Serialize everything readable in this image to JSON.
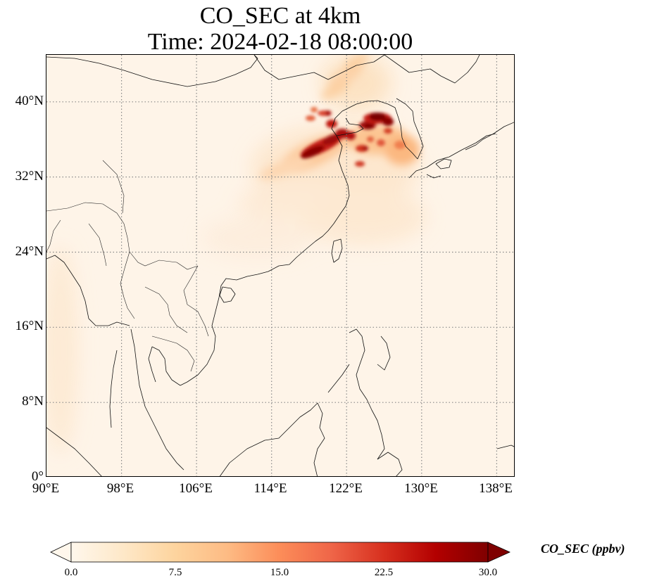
{
  "title": {
    "line1": "CO_SEC at 4km",
    "line2": "Time: 2024-02-18 08:00:00"
  },
  "map": {
    "projection": "PlateCarree",
    "lon_range": [
      90,
      140
    ],
    "lat_range": [
      0,
      45
    ],
    "gridlines": "dotted gray",
    "lat_ticks": [
      "40°N",
      "32°N",
      "24°N",
      "16°N",
      "8°N",
      "0°"
    ],
    "lon_ticks": [
      "90°E",
      "98°E",
      "106°E",
      "114°E",
      "122°E",
      "130°E",
      "138°E"
    ],
    "features": [
      "coastlines",
      "country borders"
    ]
  },
  "colorbar": {
    "label": "CO_SEC (ppbv)",
    "colormap": "OrRd",
    "range": [
      0.0,
      30.0
    ],
    "extend": "both",
    "ticks": [
      "0.0",
      "7.5",
      "15.0",
      "22.5",
      "30.0"
    ],
    "colors": [
      "#fff7ec",
      "#fee8c8",
      "#fdd49e",
      "#fdbb84",
      "#fc8d59",
      "#ef6548",
      "#d7301f",
      "#b30000",
      "#7f0000"
    ]
  }
}
